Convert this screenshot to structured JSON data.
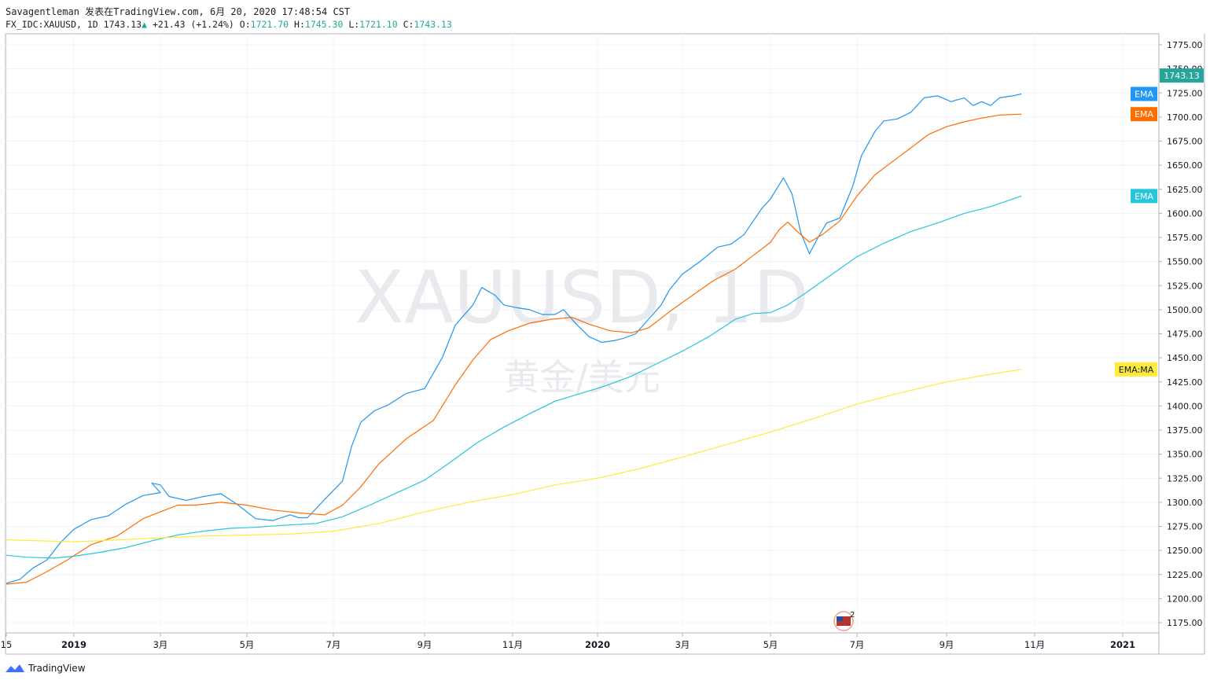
{
  "header": {
    "line1": "Savagentleman 发表在TradingView.com, 6月 20, 2020 17:48:54 CST",
    "symbol": "FX_IDC:XAUUSD, 1D",
    "last": "1743.13",
    "change": "+21.43 (+1.24%)",
    "o_label": "O:",
    "o_value": "1721.70",
    "h_label": "H:",
    "h_value": "1745.30",
    "l_label": "L:",
    "l_value": "1721.10",
    "c_label": "C:",
    "c_value": "1743.13"
  },
  "watermark": {
    "symbol": "XAUUSD, 1D",
    "desc": "黄金/美元"
  },
  "footer": {
    "brand": "TradingView"
  },
  "colors": {
    "ema_fast": "#2196f3",
    "ema_mid": "#ff6d00",
    "ema_slow": "#26c6da",
    "ema_ma": "#ffeb3b",
    "price_tag": "#26a69a",
    "grid": "#f0f3fa"
  },
  "chart_data": {
    "type": "line",
    "y_axis": {
      "ticks": [
        "1775.00",
        "1750.00",
        "1725.00",
        "1700.00",
        "1675.00",
        "1650.00",
        "1625.00",
        "1600.00",
        "1575.00",
        "1550.00",
        "1525.00",
        "1500.00",
        "1475.00",
        "1450.00",
        "1425.00",
        "1400.00",
        "1375.00",
        "1350.00",
        "1325.00",
        "1300.00",
        "1275.00",
        "1250.00",
        "1225.00",
        "1200.00",
        "1175.00"
      ],
      "range": [
        1165,
        1780
      ]
    },
    "x_axis": {
      "ticks": [
        {
          "label": "15",
          "bold": false,
          "t": 0.0
        },
        {
          "label": "2019",
          "bold": true,
          "t": 1.0
        },
        {
          "label": "3月",
          "bold": false,
          "t": 2.0
        },
        {
          "label": "5月",
          "bold": false,
          "t": 3.0
        },
        {
          "label": "7月",
          "bold": false,
          "t": 4.0
        },
        {
          "label": "9月",
          "bold": false,
          "t": 5.0
        },
        {
          "label": "11月",
          "bold": false,
          "t": 6.0
        },
        {
          "label": "2020",
          "bold": true,
          "t": 7.0
        },
        {
          "label": "3月",
          "bold": false,
          "t": 8.0
        },
        {
          "label": "5月",
          "bold": false,
          "t": 9.0
        },
        {
          "label": "7月",
          "bold": false,
          "t": 10.0
        },
        {
          "label": "9月",
          "bold": false,
          "t": 11.0
        },
        {
          "label": "11月",
          "bold": false,
          "t": 12.0
        },
        {
          "label": "2021",
          "bold": true,
          "t": 13.0
        }
      ]
    },
    "last_price_label": "1743.13",
    "event_marker_count": "2",
    "series": [
      {
        "name": "EMA",
        "color": "#2196f3",
        "points": [
          [
            0.0,
            1216
          ],
          [
            0.2,
            1220
          ],
          [
            0.4,
            1232
          ],
          [
            0.6,
            1240
          ],
          [
            0.8,
            1258
          ],
          [
            1.0,
            1272
          ],
          [
            1.2,
            1282
          ],
          [
            1.4,
            1286
          ],
          [
            1.6,
            1298
          ],
          [
            1.8,
            1307
          ],
          [
            2.0,
            1310
          ],
          [
            1.9,
            1320
          ],
          [
            2.0,
            1318
          ],
          [
            2.1,
            1306
          ],
          [
            2.3,
            1302
          ],
          [
            2.5,
            1306
          ],
          [
            2.7,
            1309
          ],
          [
            2.9,
            1297
          ],
          [
            3.0,
            1290
          ],
          [
            3.1,
            1283
          ],
          [
            3.3,
            1281
          ],
          [
            3.5,
            1287
          ],
          [
            3.6,
            1284
          ],
          [
            3.7,
            1284
          ],
          [
            3.9,
            1303
          ],
          [
            4.1,
            1322
          ],
          [
            4.2,
            1358
          ],
          [
            4.3,
            1383
          ],
          [
            4.45,
            1395
          ],
          [
            4.6,
            1401
          ],
          [
            4.8,
            1413
          ],
          [
            5.0,
            1418
          ],
          [
            5.2,
            1450
          ],
          [
            5.35,
            1484
          ],
          [
            5.55,
            1505
          ],
          [
            5.65,
            1523
          ],
          [
            5.8,
            1515
          ],
          [
            5.9,
            1505
          ],
          [
            6.05,
            1502
          ],
          [
            6.2,
            1500
          ],
          [
            6.35,
            1495
          ],
          [
            6.5,
            1495
          ],
          [
            6.6,
            1500
          ],
          [
            6.75,
            1485
          ],
          [
            6.9,
            1472
          ],
          [
            7.05,
            1466
          ],
          [
            7.2,
            1468
          ],
          [
            7.3,
            1470
          ],
          [
            7.45,
            1475
          ],
          [
            7.6,
            1490
          ],
          [
            7.75,
            1505
          ],
          [
            7.85,
            1521
          ],
          [
            8.0,
            1537
          ],
          [
            8.2,
            1550
          ],
          [
            8.4,
            1565
          ],
          [
            8.55,
            1568
          ],
          [
            8.7,
            1578
          ],
          [
            8.9,
            1605
          ],
          [
            9.0,
            1615
          ],
          [
            9.15,
            1637
          ],
          [
            9.25,
            1620
          ],
          [
            9.35,
            1580
          ],
          [
            9.45,
            1558
          ],
          [
            9.55,
            1575
          ],
          [
            9.65,
            1590
          ],
          [
            9.8,
            1595
          ],
          [
            9.95,
            1628
          ],
          [
            10.05,
            1660
          ],
          [
            10.2,
            1685
          ],
          [
            10.3,
            1696
          ],
          [
            10.45,
            1698
          ],
          [
            10.6,
            1705
          ],
          [
            10.75,
            1720
          ],
          [
            10.9,
            1722
          ],
          [
            11.05,
            1716
          ],
          [
            11.2,
            1720
          ],
          [
            11.3,
            1712
          ],
          [
            11.4,
            1716
          ],
          [
            11.5,
            1712
          ],
          [
            11.6,
            1720
          ],
          [
            11.75,
            1722
          ],
          [
            11.85,
            1724
          ]
        ]
      },
      {
        "name": "EMA",
        "color": "#ff6d00",
        "points": [
          [
            0.0,
            1215
          ],
          [
            0.3,
            1217
          ],
          [
            0.6,
            1228
          ],
          [
            0.9,
            1240
          ],
          [
            1.2,
            1256
          ],
          [
            1.5,
            1265
          ],
          [
            1.8,
            1283
          ],
          [
            2.0,
            1290
          ],
          [
            2.2,
            1297
          ],
          [
            2.4,
            1297
          ],
          [
            2.7,
            1300
          ],
          [
            3.0,
            1297
          ],
          [
            3.3,
            1292
          ],
          [
            3.6,
            1289
          ],
          [
            3.9,
            1287
          ],
          [
            4.1,
            1297
          ],
          [
            4.3,
            1316
          ],
          [
            4.5,
            1340
          ],
          [
            4.8,
            1366
          ],
          [
            5.1,
            1385
          ],
          [
            5.35,
            1422
          ],
          [
            5.55,
            1448
          ],
          [
            5.75,
            1469
          ],
          [
            5.95,
            1478
          ],
          [
            6.2,
            1486
          ],
          [
            6.45,
            1490
          ],
          [
            6.7,
            1492
          ],
          [
            6.9,
            1485
          ],
          [
            7.15,
            1478
          ],
          [
            7.4,
            1476
          ],
          [
            7.6,
            1481
          ],
          [
            7.85,
            1498
          ],
          [
            8.1,
            1514
          ],
          [
            8.35,
            1530
          ],
          [
            8.6,
            1542
          ],
          [
            8.8,
            1556
          ],
          [
            9.0,
            1570
          ],
          [
            9.1,
            1583
          ],
          [
            9.2,
            1591
          ],
          [
            9.3,
            1582
          ],
          [
            9.45,
            1570
          ],
          [
            9.6,
            1578
          ],
          [
            9.8,
            1592
          ],
          [
            10.0,
            1618
          ],
          [
            10.2,
            1640
          ],
          [
            10.4,
            1654
          ],
          [
            10.6,
            1668
          ],
          [
            10.8,
            1682
          ],
          [
            11.0,
            1690
          ],
          [
            11.2,
            1695
          ],
          [
            11.4,
            1699
          ],
          [
            11.6,
            1702
          ],
          [
            11.85,
            1703
          ]
        ]
      },
      {
        "name": "EMA",
        "color": "#26c6da",
        "points": [
          [
            0.0,
            1245
          ],
          [
            0.3,
            1243
          ],
          [
            0.7,
            1242
          ],
          [
            1.0,
            1244
          ],
          [
            1.3,
            1248
          ],
          [
            1.6,
            1253
          ],
          [
            1.9,
            1260
          ],
          [
            2.2,
            1266
          ],
          [
            2.5,
            1270
          ],
          [
            2.8,
            1273
          ],
          [
            3.1,
            1274
          ],
          [
            3.4,
            1276
          ],
          [
            3.8,
            1278
          ],
          [
            4.1,
            1285
          ],
          [
            4.4,
            1297
          ],
          [
            4.7,
            1310
          ],
          [
            5.0,
            1323
          ],
          [
            5.3,
            1342
          ],
          [
            5.6,
            1362
          ],
          [
            5.9,
            1378
          ],
          [
            6.2,
            1392
          ],
          [
            6.5,
            1405
          ],
          [
            6.8,
            1413
          ],
          [
            7.1,
            1421
          ],
          [
            7.4,
            1431
          ],
          [
            7.7,
            1444
          ],
          [
            8.0,
            1457
          ],
          [
            8.3,
            1472
          ],
          [
            8.6,
            1490
          ],
          [
            8.8,
            1496
          ],
          [
            9.0,
            1497
          ],
          [
            9.2,
            1505
          ],
          [
            9.4,
            1517
          ],
          [
            9.7,
            1536
          ],
          [
            10.0,
            1555
          ],
          [
            10.3,
            1569
          ],
          [
            10.6,
            1581
          ],
          [
            10.9,
            1590
          ],
          [
            11.2,
            1600
          ],
          [
            11.5,
            1607
          ],
          [
            11.85,
            1618
          ]
        ]
      },
      {
        "name": "EMA:MA",
        "color": "#ffeb3b",
        "points": [
          [
            0.0,
            1261
          ],
          [
            0.5,
            1260
          ],
          [
            1.0,
            1259
          ],
          [
            1.5,
            1261
          ],
          [
            2.0,
            1263
          ],
          [
            2.5,
            1265
          ],
          [
            3.0,
            1266
          ],
          [
            3.5,
            1267
          ],
          [
            4.0,
            1270
          ],
          [
            4.5,
            1278
          ],
          [
            5.0,
            1290
          ],
          [
            5.5,
            1300
          ],
          [
            6.0,
            1308
          ],
          [
            6.5,
            1318
          ],
          [
            7.0,
            1325
          ],
          [
            7.5,
            1335
          ],
          [
            8.0,
            1347
          ],
          [
            8.5,
            1360
          ],
          [
            9.0,
            1373
          ],
          [
            9.5,
            1387
          ],
          [
            10.0,
            1402
          ],
          [
            10.5,
            1414
          ],
          [
            11.0,
            1425
          ],
          [
            11.5,
            1433
          ],
          [
            11.85,
            1438
          ]
        ]
      }
    ]
  }
}
